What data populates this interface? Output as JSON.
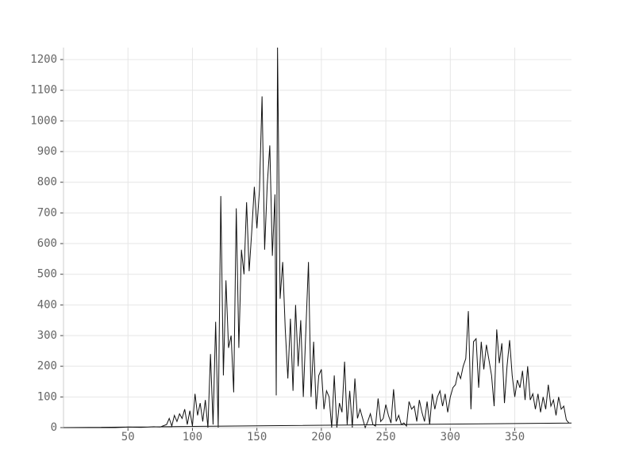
{
  "chart_data": {
    "type": "line",
    "color": "#111111",
    "grid": true,
    "xlim": [
      0,
      394
    ],
    "ylim": [
      0,
      1239
    ],
    "xticks": [
      50,
      100,
      150,
      200,
      250,
      300,
      350
    ],
    "yticks": [
      0,
      100,
      200,
      300,
      400,
      500,
      600,
      700,
      800,
      900,
      1000,
      1100,
      1200
    ],
    "x": [
      0,
      10,
      20,
      30,
      40,
      50,
      60,
      70,
      75,
      80,
      82,
      84,
      86,
      88,
      90,
      92,
      94,
      96,
      98,
      100,
      102,
      104,
      106,
      108,
      110,
      112,
      114,
      116,
      118,
      120,
      122,
      124,
      126,
      128,
      130,
      132,
      134,
      136,
      138,
      140,
      142,
      144,
      146,
      148,
      150,
      152,
      154,
      156,
      158,
      160,
      162,
      164,
      165,
      166,
      168,
      170,
      172,
      174,
      176,
      178,
      180,
      182,
      184,
      186,
      188,
      190,
      192,
      194,
      196,
      198,
      200,
      202,
      204,
      206,
      208,
      210,
      212,
      214,
      216,
      218,
      220,
      222,
      224,
      226,
      228,
      230,
      232,
      234,
      236,
      238,
      240,
      242,
      244,
      246,
      248,
      250,
      252,
      254,
      256,
      258,
      260,
      262,
      264,
      266,
      268,
      270,
      272,
      274,
      276,
      278,
      280,
      282,
      284,
      286,
      288,
      290,
      292,
      294,
      296,
      298,
      300,
      302,
      304,
      306,
      308,
      310,
      312,
      314,
      316,
      318,
      320,
      322,
      324,
      326,
      328,
      330,
      332,
      334,
      336,
      338,
      340,
      342,
      344,
      346,
      348,
      350,
      352,
      354,
      356,
      358,
      360,
      362,
      364,
      366,
      368,
      370,
      372,
      374,
      376,
      378,
      380,
      382,
      384,
      386,
      388,
      390,
      392,
      394,
      0
    ],
    "values": [
      0,
      0,
      0,
      0,
      0,
      2,
      1,
      3,
      2,
      10,
      30,
      5,
      40,
      20,
      45,
      30,
      60,
      10,
      55,
      5,
      110,
      40,
      80,
      20,
      90,
      0,
      240,
      10,
      345,
      0,
      755,
      170,
      480,
      260,
      300,
      115,
      715,
      260,
      580,
      500,
      735,
      510,
      640,
      785,
      650,
      775,
      1080,
      580,
      790,
      920,
      560,
      760,
      105,
      1239,
      420,
      540,
      320,
      160,
      355,
      120,
      400,
      200,
      350,
      100,
      320,
      540,
      100,
      280,
      60,
      170,
      190,
      60,
      120,
      100,
      0,
      170,
      0,
      80,
      50,
      215,
      10,
      120,
      0,
      160,
      30,
      60,
      30,
      0,
      20,
      45,
      10,
      5,
      95,
      20,
      30,
      75,
      40,
      15,
      125,
      20,
      40,
      10,
      15,
      5,
      85,
      60,
      70,
      20,
      90,
      50,
      20,
      85,
      10,
      110,
      60,
      100,
      120,
      70,
      110,
      50,
      100,
      130,
      140,
      180,
      160,
      200,
      225,
      380,
      60,
      280,
      290,
      130,
      280,
      190,
      270,
      220,
      170,
      70,
      320,
      210,
      275,
      80,
      200,
      285,
      170,
      100,
      155,
      130,
      185,
      90,
      200,
      90,
      110,
      60,
      110,
      50,
      100,
      60,
      140,
      70,
      90,
      40,
      100,
      60,
      70,
      25,
      15,
      15,
      0
    ]
  }
}
